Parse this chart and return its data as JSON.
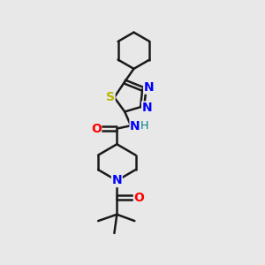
{
  "bg_color": "#e8e8e8",
  "bond_color": "#1a1a1a",
  "N_color": "#0000ff",
  "O_color": "#ff0000",
  "S_color": "#b8b800",
  "H_color": "#008080",
  "bond_width": 1.8,
  "figsize": [
    3.0,
    3.0
  ],
  "dpi": 100,
  "xlim": [
    0,
    10
  ],
  "ylim": [
    0,
    10
  ],
  "font_size": 10
}
